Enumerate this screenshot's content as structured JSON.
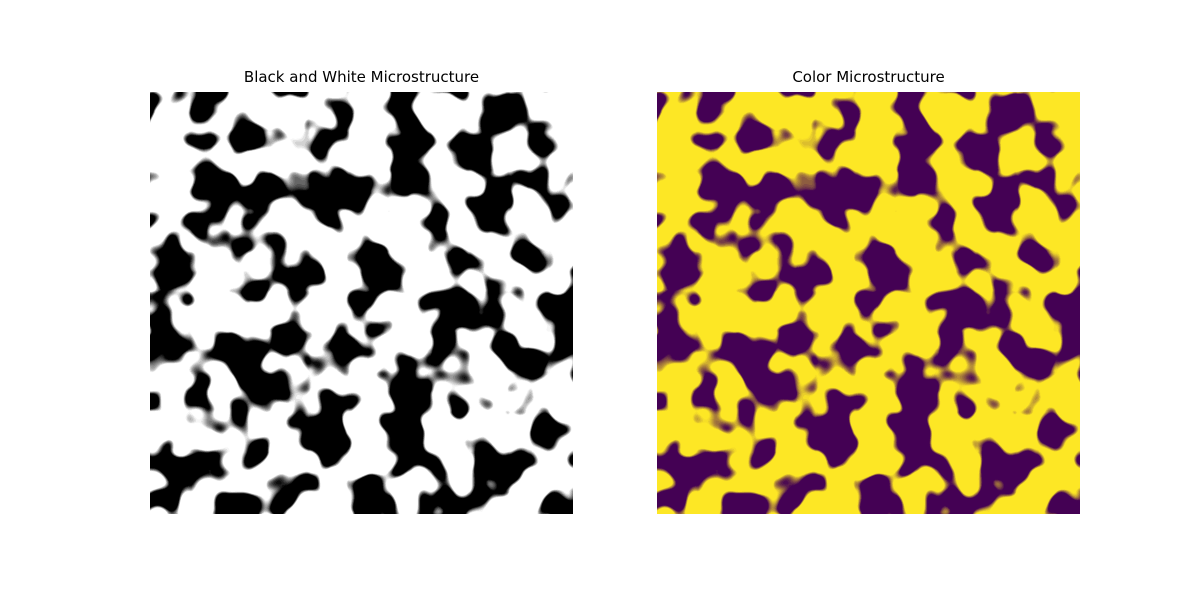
{
  "figure": {
    "panels": [
      {
        "title": "Black and White Microstructure",
        "foreground_color": "#000000",
        "background_color": "#ffffff"
      },
      {
        "title": "Color Microstructure",
        "foreground_color": "#440154",
        "background_color": "#fde725"
      }
    ]
  }
}
